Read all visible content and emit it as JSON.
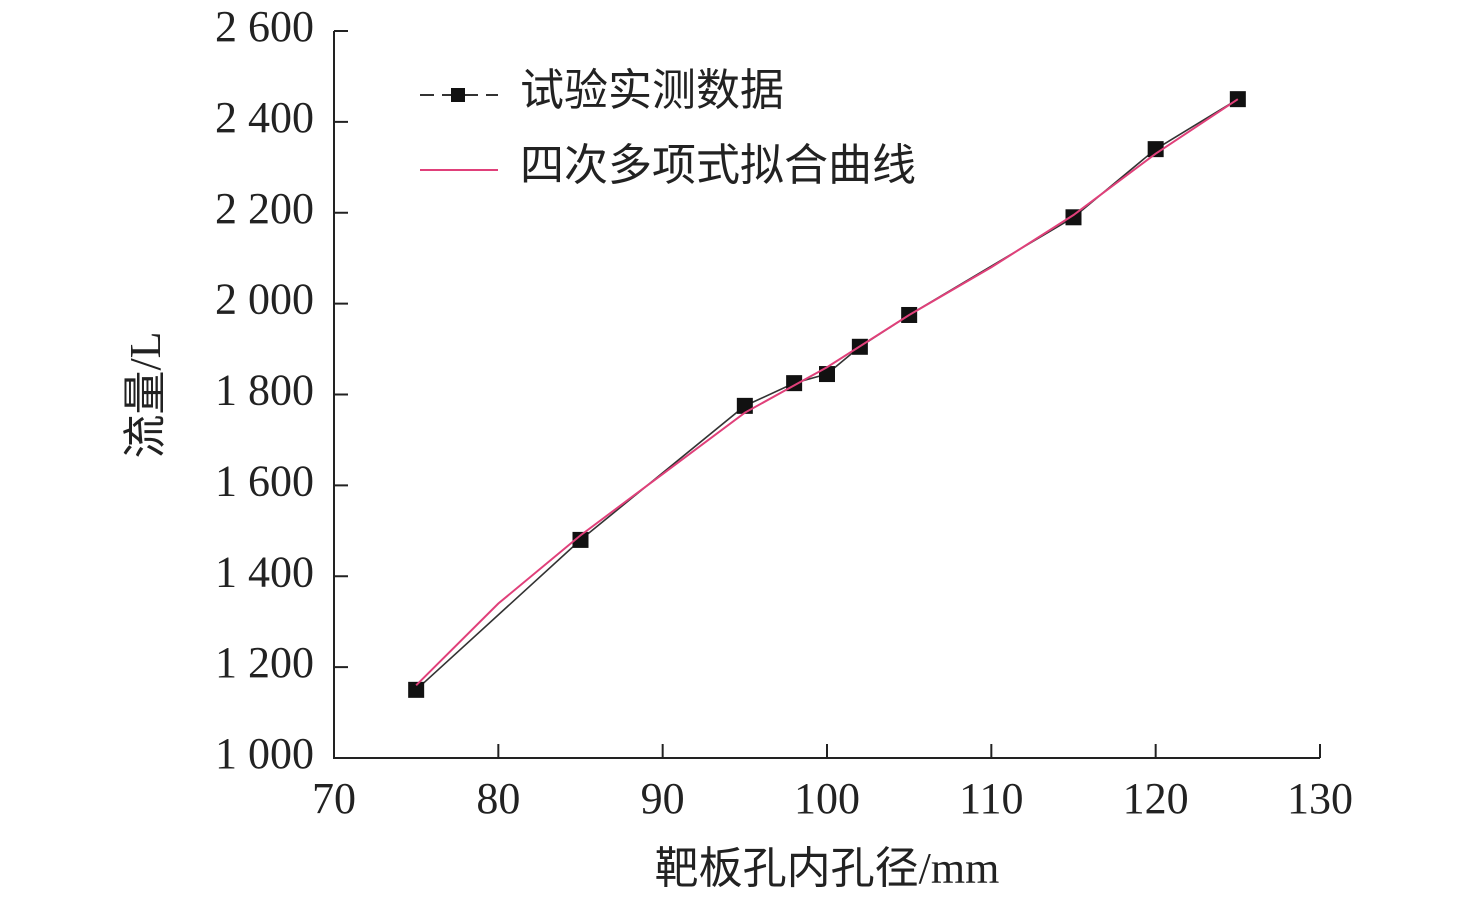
{
  "chart_data": {
    "type": "line",
    "xlabel": "靶板孔内孔径/mm",
    "ylabel": "流量/L",
    "xlim": [
      70,
      130
    ],
    "xticks": [
      70,
      80,
      90,
      100,
      110,
      120,
      130
    ],
    "ylim": [
      1000,
      2600
    ],
    "yticks": [
      {
        "value": 1000,
        "label": "1 000"
      },
      {
        "value": 1200,
        "label": "1 200"
      },
      {
        "value": 1400,
        "label": "1 400"
      },
      {
        "value": 1600,
        "label": "1 600"
      },
      {
        "value": 1800,
        "label": "1 800"
      },
      {
        "value": 2000,
        "label": "2 000"
      },
      {
        "value": 2200,
        "label": "2 200"
      },
      {
        "value": 2400,
        "label": "2 400"
      },
      {
        "value": 2600,
        "label": "2 600"
      }
    ],
    "legend": "upper left",
    "series": [
      {
        "name": "试验实测数据",
        "color": "#333333",
        "marker": "square",
        "x": [
          75,
          85,
          95,
          98,
          100,
          102,
          105,
          115,
          120,
          125
        ],
        "values": [
          1150,
          1480,
          1775,
          1825,
          1845,
          1905,
          1975,
          2190,
          2340,
          2450
        ]
      },
      {
        "name": "四次多项式拟合曲线",
        "color": "#e0407a",
        "marker": "none",
        "x": [
          75,
          80,
          85,
          90,
          95,
          100,
          105,
          110,
          115,
          120,
          125
        ],
        "values": [
          1160,
          1340,
          1490,
          1625,
          1760,
          1860,
          1975,
          2080,
          2195,
          2330,
          2450
        ]
      }
    ]
  }
}
